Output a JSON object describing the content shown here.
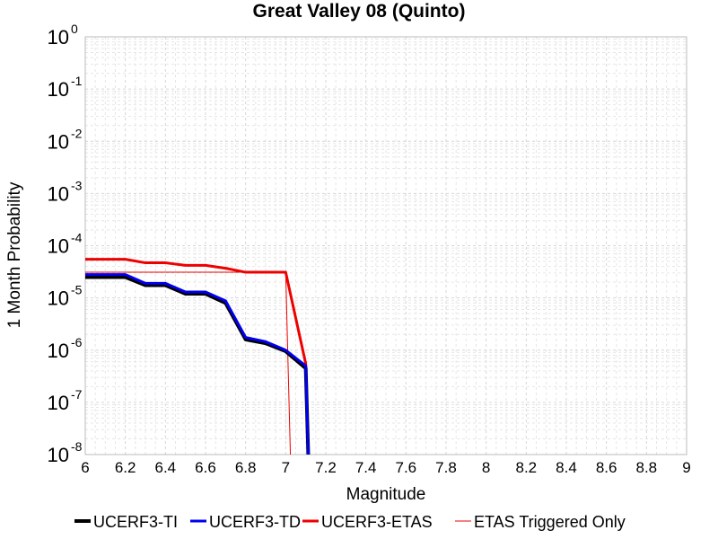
{
  "chart_data": {
    "type": "line",
    "title": "Great Valley 08 (Quinto)",
    "xlabel": "Magnitude",
    "ylabel": "1 Month Probability",
    "xlim": [
      6,
      9
    ],
    "ylim": [
      1e-08,
      1
    ],
    "yscale": "log",
    "grid": true,
    "legend_position": "bottom",
    "x_ticks": [
      "6",
      "6.2",
      "6.4",
      "6.6",
      "6.8",
      "7",
      "7.2",
      "7.4",
      "7.6",
      "7.8",
      "8",
      "8.2",
      "8.4",
      "8.6",
      "8.8",
      "9"
    ],
    "y_ticks": [
      {
        "base": "10",
        "exp": "0"
      },
      {
        "base": "10",
        "exp": "-1"
      },
      {
        "base": "10",
        "exp": "-2"
      },
      {
        "base": "10",
        "exp": "-3"
      },
      {
        "base": "10",
        "exp": "-4"
      },
      {
        "base": "10",
        "exp": "-5"
      },
      {
        "base": "10",
        "exp": "-6"
      },
      {
        "base": "10",
        "exp": "-7"
      },
      {
        "base": "10",
        "exp": "-8"
      }
    ],
    "series": [
      {
        "name": "UCERF3-TI",
        "color": "#000000",
        "width": 4,
        "x": [
          6.0,
          6.2,
          6.3,
          6.4,
          6.5,
          6.6,
          6.7,
          6.8,
          6.9,
          7.0,
          7.1,
          7.12
        ],
        "y": [
          2.5e-05,
          2.5e-05,
          1.75e-05,
          1.75e-05,
          1.2e-05,
          1.2e-05,
          8e-06,
          1.6e-06,
          1.35e-06,
          9.5e-07,
          4.5e-07,
          1e-09
        ]
      },
      {
        "name": "UCERF3-TD",
        "color": "#0000ee",
        "width": 3,
        "x": [
          6.0,
          6.2,
          6.3,
          6.4,
          6.5,
          6.6,
          6.7,
          6.8,
          6.9,
          7.0,
          7.1,
          7.12
        ],
        "y": [
          2.8e-05,
          2.8e-05,
          1.9e-05,
          1.9e-05,
          1.3e-05,
          1.3e-05,
          8.8e-06,
          1.75e-06,
          1.45e-06,
          1e-06,
          5e-07,
          1e-09
        ]
      },
      {
        "name": "UCERF3-ETAS",
        "color": "#ee0000",
        "width": 3,
        "x": [
          6.0,
          6.2,
          6.3,
          6.4,
          6.5,
          6.6,
          6.7,
          6.8,
          6.9,
          7.0,
          7.1,
          7.12
        ],
        "y": [
          5.5e-05,
          5.5e-05,
          4.7e-05,
          4.7e-05,
          4.2e-05,
          4.2e-05,
          3.7e-05,
          3.1e-05,
          3.1e-05,
          3.1e-05,
          5.5e-07,
          1e-09
        ]
      },
      {
        "name": "ETAS Triggered Only",
        "color": "#ee0000",
        "width": 1,
        "x": [
          6.0,
          7.0,
          7.03
        ],
        "y": [
          3.1e-05,
          3.1e-05,
          1e-09
        ]
      }
    ]
  }
}
